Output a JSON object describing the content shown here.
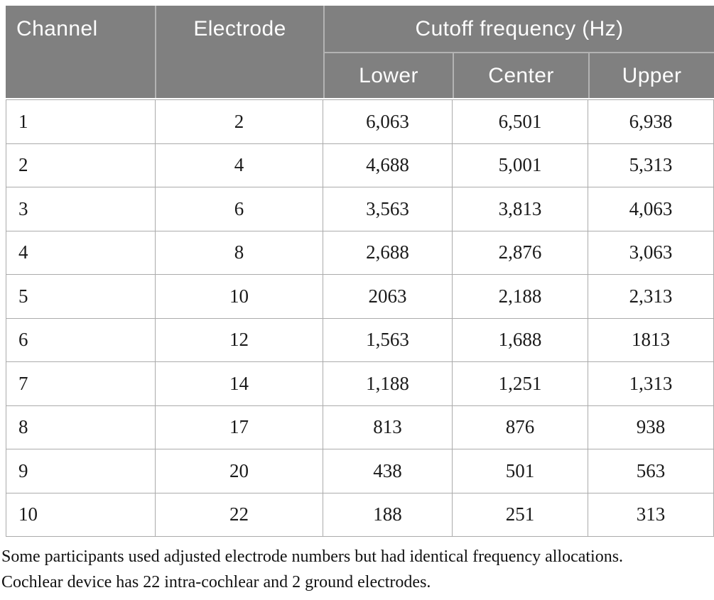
{
  "table": {
    "header": {
      "channel": "Channel",
      "electrode": "Electrode",
      "cutoff_group": "Cutoff frequency (Hz)",
      "lower": "Lower",
      "center": "Center",
      "upper": "Upper"
    },
    "rows": [
      {
        "channel": "1",
        "electrode": "2",
        "lower": "6,063",
        "center": "6,501",
        "upper": "6,938"
      },
      {
        "channel": "2",
        "electrode": "4",
        "lower": "4,688",
        "center": "5,001",
        "upper": "5,313"
      },
      {
        "channel": "3",
        "electrode": "6",
        "lower": "3,563",
        "center": "3,813",
        "upper": "4,063"
      },
      {
        "channel": "4",
        "electrode": "8",
        "lower": "2,688",
        "center": "2,876",
        "upper": "3,063"
      },
      {
        "channel": "5",
        "electrode": "10",
        "lower": "2063",
        "center": "2,188",
        "upper": "2,313"
      },
      {
        "channel": "6",
        "electrode": "12",
        "lower": "1,563",
        "center": "1,688",
        "upper": "1813"
      },
      {
        "channel": "7",
        "electrode": "14",
        "lower": "1,188",
        "center": "1,251",
        "upper": "1,313"
      },
      {
        "channel": "8",
        "electrode": "17",
        "lower": "813",
        "center": "876",
        "upper": "938"
      },
      {
        "channel": "9",
        "electrode": "20",
        "lower": "438",
        "center": "501",
        "upper": "563"
      },
      {
        "channel": "10",
        "electrode": "22",
        "lower": "188",
        "center": "251",
        "upper": "313"
      }
    ]
  },
  "footnotes": {
    "line1": "Some participants used adjusted electrode numbers but had identical frequency allocations.",
    "line2": "Cochlear device has 22 intra-cochlear and 2 ground electrodes."
  },
  "colors": {
    "header_bg": "#808080",
    "header_text": "#fdfdfd",
    "header_divider": "#b3b3b3",
    "cell_border": "#ababab",
    "body_text": "#1a1a1a"
  }
}
